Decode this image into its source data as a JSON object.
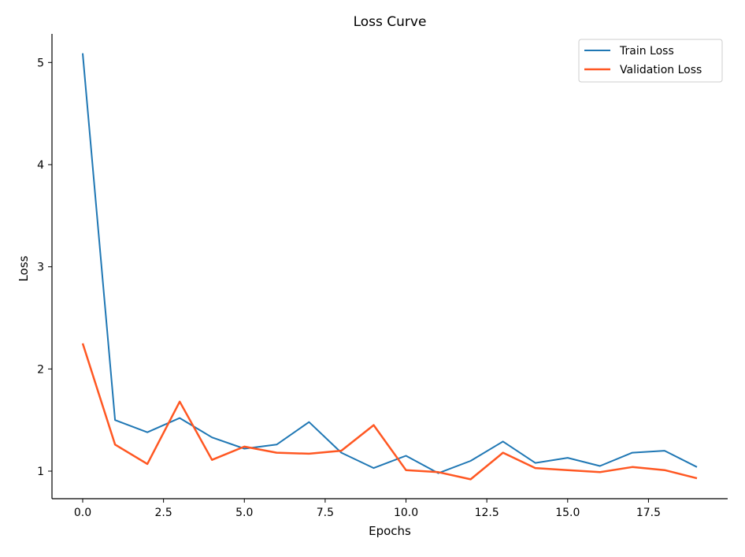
{
  "chart_data": {
    "type": "line",
    "title": "Loss Curve",
    "xlabel": "Epochs",
    "ylabel": "Loss",
    "xlim": [
      -0.95,
      19.95
    ],
    "ylim": [
      0.73,
      5.28
    ],
    "xticks": [
      0,
      2.5,
      5,
      7.5,
      10,
      12.5,
      15,
      17.5
    ],
    "xtick_labels": [
      "0.0",
      "2.5",
      "5.0",
      "7.5",
      "10.0",
      "12.5",
      "15.0",
      "17.5"
    ],
    "yticks": [
      1,
      2,
      3,
      4,
      5
    ],
    "ytick_labels": [
      "1",
      "2",
      "3",
      "4",
      "5"
    ],
    "grid": false,
    "legend_position": "top-right",
    "x": [
      0,
      1,
      2,
      3,
      4,
      5,
      6,
      7,
      8,
      9,
      10,
      11,
      12,
      13,
      14,
      15,
      16,
      17,
      18,
      19
    ],
    "series": [
      {
        "name": "Train Loss",
        "color": "#1f77b4",
        "values": [
          5.09,
          1.5,
          1.38,
          1.52,
          1.33,
          1.22,
          1.26,
          1.48,
          1.18,
          1.03,
          1.15,
          0.98,
          1.1,
          1.29,
          1.08,
          1.13,
          1.05,
          1.18,
          1.2,
          1.04
        ]
      },
      {
        "name": "Validation Loss",
        "color": "#ff5722",
        "values": [
          2.25,
          1.26,
          1.07,
          1.68,
          1.11,
          1.24,
          1.18,
          1.17,
          1.2,
          1.45,
          1.01,
          0.99,
          0.92,
          1.18,
          1.03,
          1.01,
          0.99,
          1.04,
          1.01,
          0.93
        ]
      }
    ]
  }
}
